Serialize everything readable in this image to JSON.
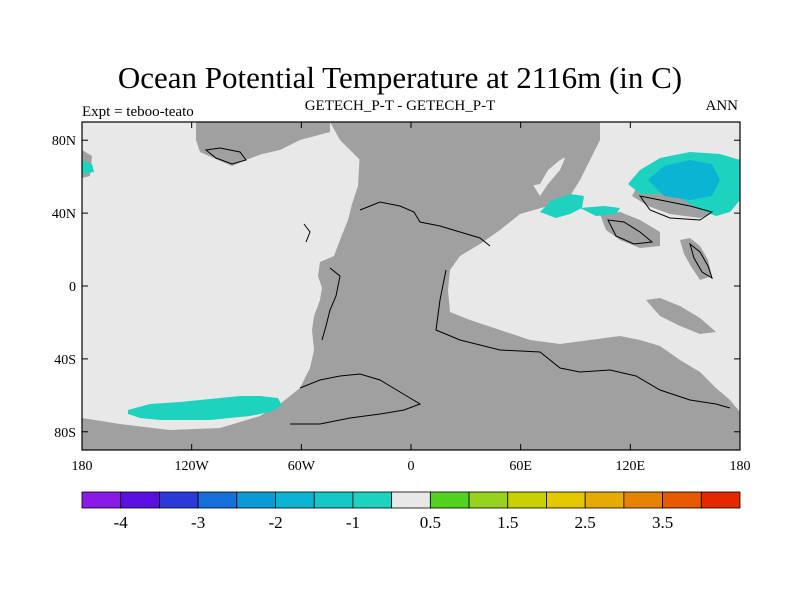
{
  "title": "Ocean Potential Temperature at 2116m (in C)",
  "subtitle_left": "Expt = teboo-teato",
  "subtitle_center": "GETECH_P-T - GETECH_P-T",
  "subtitle_right": "ANN",
  "colors": {
    "land": "#a0a0a0",
    "ocean_neutral": "#e8e8e8",
    "cool_1": "#1ed2c0",
    "cool_2": "#0ab4d2",
    "coast": "#000000"
  },
  "axes": {
    "lon_ticks": [
      {
        "value": -180,
        "label": "180"
      },
      {
        "value": -120,
        "label": "120W"
      },
      {
        "value": -60,
        "label": "60W"
      },
      {
        "value": 0,
        "label": "0"
      },
      {
        "value": 60,
        "label": "60E"
      },
      {
        "value": 120,
        "label": "120E"
      },
      {
        "value": 180,
        "label": "180"
      }
    ],
    "lat_ticks": [
      {
        "value": 80,
        "label": "80N"
      },
      {
        "value": 40,
        "label": "40N"
      },
      {
        "value": 0,
        "label": "0"
      },
      {
        "value": -40,
        "label": "40S"
      },
      {
        "value": -80,
        "label": "80S"
      }
    ]
  },
  "colorbar": {
    "colors": [
      "#8a1be6",
      "#5a10e0",
      "#2b3ad6",
      "#1670dc",
      "#0a9ad8",
      "#0ab4d2",
      "#14c8c8",
      "#1ed2c0",
      "#e8e8e8",
      "#50d21e",
      "#96d21e",
      "#c8d200",
      "#e6c800",
      "#e6aa00",
      "#e68200",
      "#e65a00",
      "#e62800"
    ],
    "labels": [
      {
        "boundary": 1,
        "text": "-4"
      },
      {
        "boundary": 3,
        "text": "-3"
      },
      {
        "boundary": 5,
        "text": "-2"
      },
      {
        "boundary": 7,
        "text": "-1"
      },
      {
        "boundary": 9,
        "text": "0.5"
      },
      {
        "boundary": 11,
        "text": "1.5"
      },
      {
        "boundary": 13,
        "text": "2.5"
      },
      {
        "boundary": 15,
        "text": "3.5"
      }
    ]
  }
}
